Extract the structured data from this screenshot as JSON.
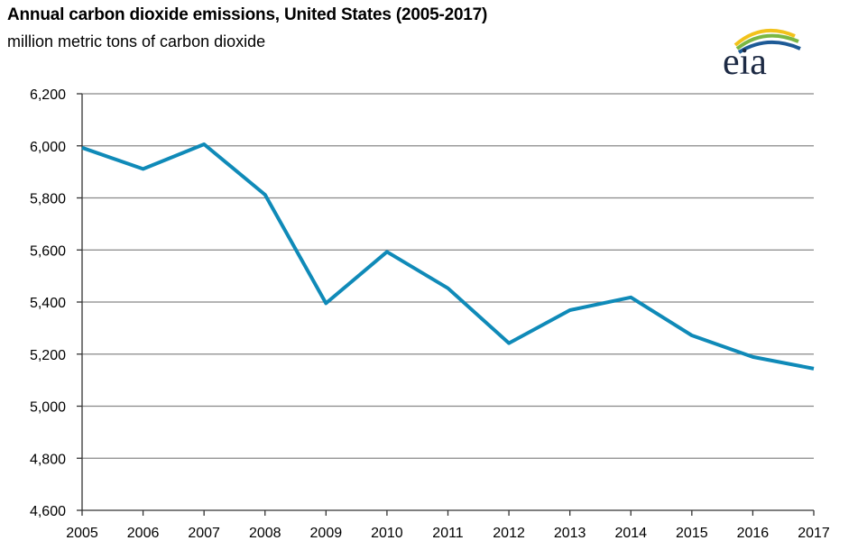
{
  "header": {
    "title": "Annual carbon dioxide emissions, United States (2005-2017)",
    "subtitle": "million metric tons of carbon dioxide",
    "logo_text": "eia"
  },
  "colors": {
    "line": "#0f8ab8",
    "grid": "#888888",
    "logo_blue": "#1d5a96",
    "logo_green": "#7ab743",
    "logo_yellow": "#f2c21b"
  },
  "chart_data": {
    "type": "line",
    "title": "Annual carbon dioxide emissions, United States (2005-2017)",
    "subtitle": "million metric tons of carbon dioxide",
    "xlabel": "",
    "ylabel": "",
    "x": [
      "2005",
      "2006",
      "2007",
      "2008",
      "2009",
      "2010",
      "2011",
      "2012",
      "2013",
      "2014",
      "2015",
      "2016",
      "2017"
    ],
    "series": [
      {
        "values": [
          5993,
          5911,
          6006,
          5812,
          5395,
          5593,
          5453,
          5242,
          5369,
          5418,
          5272,
          5189,
          5144
        ]
      }
    ],
    "ylim": [
      4600,
      6200
    ],
    "yticks": [
      4600,
      4800,
      5000,
      5200,
      5400,
      5600,
      5800,
      6000,
      6200
    ],
    "ytick_labels": [
      "4,600",
      "4,800",
      "5,000",
      "5,200",
      "5,400",
      "5,600",
      "5,800",
      "6,000",
      "6,200"
    ],
    "grid": true,
    "legend": "none"
  }
}
